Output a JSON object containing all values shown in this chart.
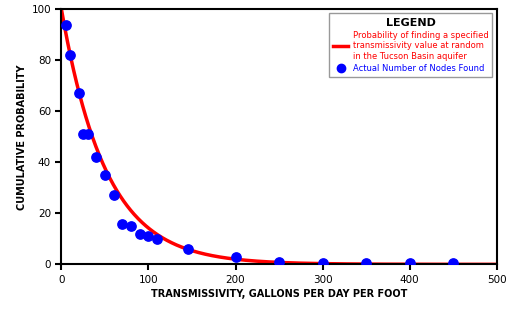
{
  "scatter_x": [
    5,
    10,
    20,
    25,
    30,
    40,
    50,
    60,
    70,
    80,
    90,
    100,
    110,
    145,
    200,
    250,
    300,
    350,
    400,
    450
  ],
  "scatter_y": [
    94,
    82,
    67,
    51,
    51,
    42,
    35,
    27,
    16,
    15,
    12,
    11,
    10,
    6,
    3,
    1,
    0.5,
    0.5,
    0.5,
    0.5
  ],
  "curve_scale": 100.0,
  "curve_lambda": 0.0195,
  "curve_x_start": 0,
  "curve_x_end": 500,
  "xlim": [
    0,
    500
  ],
  "ylim": [
    0,
    100
  ],
  "xticks": [
    0,
    100,
    200,
    300,
    400,
    500
  ],
  "yticks": [
    0,
    20,
    40,
    60,
    80,
    100
  ],
  "xlabel": "TRANSMISSIVITY, GALLONS PER DAY PER FOOT",
  "ylabel": "CUMULATIVE PROBABILITY",
  "line_color": "#ff0000",
  "scatter_color": "#0000ff",
  "legend_title": "LEGEND",
  "legend_line_label": "Probability of finding a specified\ntransmissivity value at random\nin the Tucson Basin aquifer",
  "legend_scatter_label": "Actual Number of Nodes Found",
  "background_color": "#ffffff",
  "line_width": 2.5,
  "scatter_size": 45,
  "fig_width": 5.12,
  "fig_height": 3.11,
  "dpi": 100
}
